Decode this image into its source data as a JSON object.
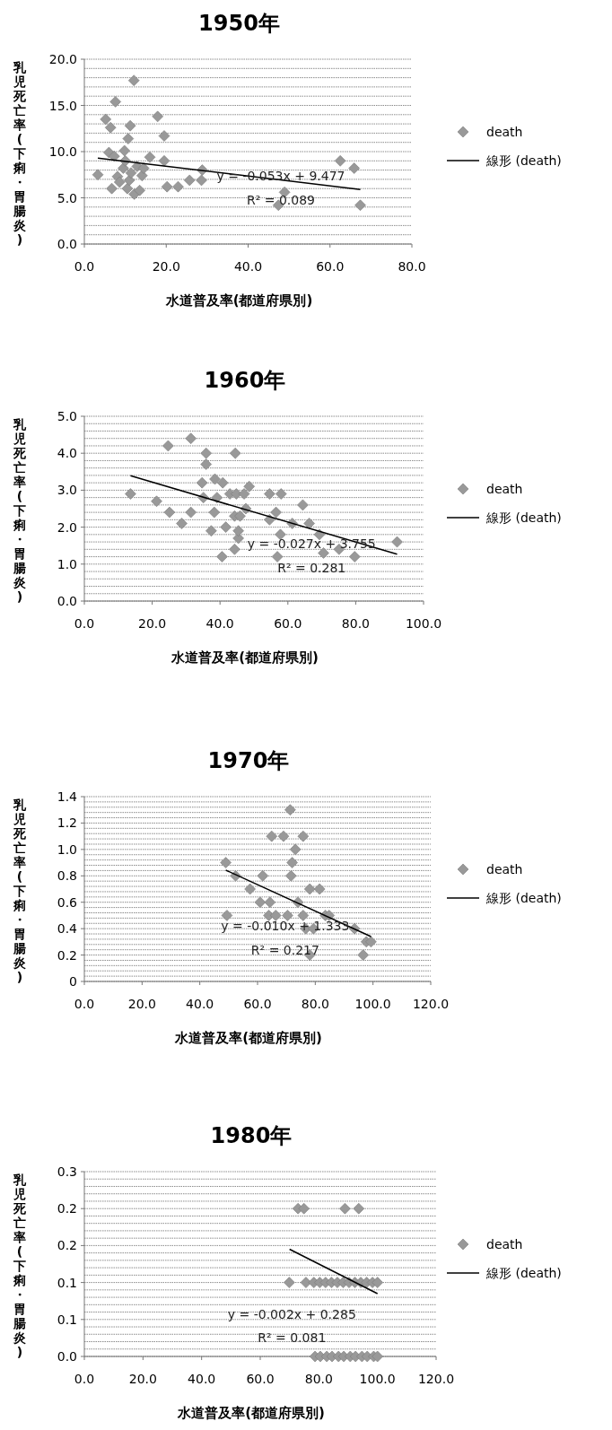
{
  "chart_data": [
    {
      "type": "scatter",
      "title": "1950年",
      "xlabel": "水道普及率(都道府県別)",
      "ylabel": "乳児死亡率(下痢・胃腸炎)",
      "grid": "y",
      "legend": "right",
      "xlim": [
        0,
        80
      ],
      "ylim": [
        0,
        20
      ],
      "xticks": [
        {
          "value": 0,
          "label": "0.0"
        },
        {
          "value": 20,
          "label": "20.0"
        },
        {
          "value": 40,
          "label": "40.0"
        },
        {
          "value": 60,
          "label": "60.0"
        },
        {
          "value": 80,
          "label": "80.0"
        }
      ],
      "yticks": [
        {
          "value": 0,
          "label": "0.0"
        },
        {
          "value": 5,
          "label": "5.0"
        },
        {
          "value": 10,
          "label": "10.0"
        },
        {
          "value": 15,
          "label": "15.0"
        },
        {
          "value": 20,
          "label": "20.0"
        }
      ],
      "series": [
        {
          "name": "death",
          "color": "#999999",
          "marker": "diamond",
          "x": [
            3.3,
            5.2,
            6.4,
            6.0,
            6.7,
            7.6,
            7.3,
            8.1,
            8.6,
            9.5,
            10.0,
            9.8,
            10.7,
            11.2,
            10.5,
            11.0,
            11.4,
            12.1,
            12.2,
            12.9,
            13.5,
            14.1,
            14.5,
            16.0,
            17.9,
            19.5,
            19.5,
            20.2,
            22.9,
            25.7,
            28.6,
            28.8,
            48.9,
            47.4,
            62.5,
            65.9,
            67.4
          ],
          "values": [
            7.5,
            13.5,
            12.6,
            9.9,
            6.0,
            15.4,
            9.5,
            7.3,
            6.7,
            8.2,
            9.0,
            10.1,
            11.4,
            12.8,
            6.0,
            6.9,
            7.7,
            17.7,
            5.4,
            8.4,
            5.8,
            7.4,
            8.2,
            9.4,
            13.8,
            11.7,
            9.0,
            6.2,
            6.2,
            6.9,
            6.9,
            8.0,
            5.6,
            4.2,
            9.0,
            8.2,
            4.2
          ]
        },
        {
          "name": "線形 (death)",
          "type": "line",
          "color": "#000000",
          "x": [
            3.3,
            67.4
          ],
          "values": [
            9.3,
            5.9
          ]
        }
      ],
      "annotations": [
        "y = -0.053x + 9.477",
        "R² = 0.089"
      ]
    },
    {
      "type": "scatter",
      "title": "1960年",
      "xlabel": "水道普及率(都道府県別)",
      "ylabel": "乳児死亡率(下痢・胃腸炎)",
      "grid": "y",
      "legend": "right",
      "xlim": [
        0,
        100
      ],
      "ylim": [
        0,
        5
      ],
      "xticks": [
        {
          "value": 0,
          "label": "0.0"
        },
        {
          "value": 20,
          "label": "20.0"
        },
        {
          "value": 40,
          "label": "40.0"
        },
        {
          "value": 60,
          "label": "60.0"
        },
        {
          "value": 80,
          "label": "80.0"
        },
        {
          "value": 100,
          "label": "100.0"
        }
      ],
      "yticks": [
        {
          "value": 0,
          "label": "0.0"
        },
        {
          "value": 1,
          "label": "1.0"
        },
        {
          "value": 2,
          "label": "2.0"
        },
        {
          "value": 3,
          "label": "3.0"
        },
        {
          "value": 4,
          "label": "4.0"
        },
        {
          "value": 5,
          "label": "5.0"
        }
      ],
      "series": [
        {
          "name": "death",
          "color": "#999999",
          "marker": "diamond",
          "x": [
            13.6,
            21.3,
            24.7,
            25.1,
            28.7,
            31.4,
            31.4,
            34.7,
            35.1,
            35.9,
            35.9,
            37.4,
            38.3,
            38.5,
            39.1,
            40.8,
            40.6,
            41.7,
            42.9,
            44.3,
            44.5,
            44.3,
            44.8,
            45.4,
            45.4,
            45.9,
            47.1,
            47.6,
            48.6,
            54.6,
            54.6,
            56.5,
            56.9,
            58.0,
            57.8,
            61.3,
            64.4,
            66.3,
            69.3,
            70.5,
            75.1,
            79.7,
            92.2
          ],
          "values": [
            2.9,
            2.7,
            4.2,
            2.4,
            2.1,
            4.4,
            2.4,
            3.2,
            2.8,
            4.0,
            3.7,
            1.9,
            2.4,
            3.3,
            2.8,
            3.2,
            1.2,
            2.0,
            2.9,
            2.3,
            4.0,
            1.4,
            2.9,
            1.7,
            1.9,
            2.3,
            2.9,
            2.5,
            3.1,
            2.9,
            2.2,
            2.4,
            1.2,
            2.9,
            1.8,
            2.1,
            2.6,
            2.1,
            1.8,
            1.3,
            1.4,
            1.2,
            1.6
          ]
        },
        {
          "name": "線形 (death)",
          "type": "line",
          "color": "#000000",
          "x": [
            13.6,
            92.2
          ],
          "values": [
            3.39,
            1.27
          ]
        }
      ],
      "annotations": [
        "y = -0.027x + 3.755",
        "R² = 0.281"
      ]
    },
    {
      "type": "scatter",
      "title": "1970年",
      "xlabel": "水道普及率(都道府県別)",
      "ylabel": "乳児死亡率(下痢・胃腸炎)",
      "grid": "y",
      "legend": "right",
      "xlim": [
        0,
        120
      ],
      "ylim": [
        0,
        1.4
      ],
      "xticks": [
        {
          "value": 0,
          "label": "0.0"
        },
        {
          "value": 20,
          "label": "20.0"
        },
        {
          "value": 40,
          "label": "40.0"
        },
        {
          "value": 60,
          "label": "60.0"
        },
        {
          "value": 80,
          "label": "80.0"
        },
        {
          "value": 100,
          "label": "100.0"
        },
        {
          "value": 120,
          "label": "120.0"
        }
      ],
      "yticks": [
        0.0,
        0.2,
        0.4,
        0.6,
        0.8,
        {
          "value": 1,
          "label": "1.0"
        },
        1.2,
        1.4
      ],
      "series": [
        {
          "name": "death",
          "color": "#999999",
          "marker": "diamond",
          "x": [
            49.0,
            49.4,
            52.4,
            57.4,
            60.9,
            61.8,
            64.3,
            64.9,
            63.9,
            66.3,
            69.0,
            70.4,
            71.3,
            71.6,
            72.0,
            73.1,
            74.0,
            75.8,
            75.8,
            76.7,
            78.1,
            78.1,
            79.4,
            81.5,
            83.5,
            84.8,
            93.6,
            96.6,
            97.7,
            99.3
          ],
          "values": [
            0.9,
            0.5,
            0.8,
            0.7,
            0.6,
            0.8,
            0.6,
            1.1,
            0.5,
            0.5,
            1.1,
            0.5,
            1.3,
            0.8,
            0.9,
            1.0,
            0.6,
            1.1,
            0.5,
            0.4,
            0.7,
            0.2,
            0.4,
            0.7,
            0.5,
            0.5,
            0.4,
            0.2,
            0.3,
            0.3
          ]
        },
        {
          "name": "線形 (death)",
          "type": "line",
          "color": "#000000",
          "x": [
            49.0,
            99.3
          ],
          "values": [
            0.843,
            0.34
          ]
        }
      ],
      "annotations": [
        "y = -0.010x + 1.333",
        "R² = 0.217"
      ]
    },
    {
      "type": "scatter",
      "title": "1980年",
      "xlabel": "水道普及率(都道府県別)",
      "ylabel": "乳児死亡率(下痢・胃腸炎)",
      "grid": "y",
      "legend": "right",
      "xlim": [
        0,
        120
      ],
      "ylim": [
        0,
        0.25
      ],
      "xticks": [
        {
          "value": 0,
          "label": "0.0"
        },
        {
          "value": 20,
          "label": "20.0"
        },
        {
          "value": 40,
          "label": "40.0"
        },
        {
          "value": 60,
          "label": "60.0"
        },
        {
          "value": 80,
          "label": "80.0"
        },
        {
          "value": 100,
          "label": "100.0"
        },
        {
          "value": 120,
          "label": "120.0"
        }
      ],
      "yticks": [
        {
          "value": 0,
          "label": "0.0"
        },
        {
          "value": 0.05,
          "label": "0.1"
        },
        {
          "value": 0.1,
          "label": "0.1"
        },
        {
          "value": 0.15,
          "label": "0.2"
        },
        {
          "value": 0.2,
          "label": "0.2"
        },
        {
          "value": 0.25,
          "label": "0.3"
        }
      ],
      "series": [
        {
          "name": "death",
          "color": "#999999",
          "marker": "diamond",
          "x": [
            72.9,
            74.9,
            88.9,
            93.6,
            69.9,
            75.6,
            78.3,
            80.3,
            82.3,
            84.3,
            86.3,
            88.3,
            90.3,
            92.3,
            94.3,
            96.3,
            98.3,
            100,
            78.7,
            80.5,
            82.7,
            84.5,
            86.7,
            88.5,
            90.7,
            92.5,
            94.7,
            96.5,
            98.7,
            100
          ],
          "values": [
            0.2,
            0.2,
            0.2,
            0.2,
            0.1,
            0.1,
            0.1,
            0.1,
            0.1,
            0.1,
            0.1,
            0.1,
            0.1,
            0.1,
            0.1,
            0.1,
            0.1,
            0.1,
            0,
            0,
            0,
            0,
            0,
            0,
            0,
            0,
            0,
            0,
            0,
            0
          ]
        },
        {
          "name": "線形 (death)",
          "type": "line",
          "color": "#000000",
          "x": [
            70,
            100
          ],
          "values": [
            0.145,
            0.085
          ]
        }
      ],
      "annotations": [
        "y = -0.002x + 0.285",
        "R² = 0.081"
      ]
    }
  ]
}
